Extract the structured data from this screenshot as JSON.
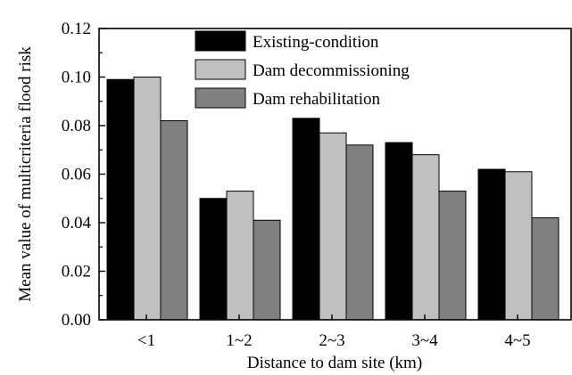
{
  "chart_data": {
    "type": "bar",
    "xlabel": "Distance to dam site (km)",
    "ylabel": "Mean value of multicriteria flood risk",
    "categories": [
      "<1",
      "1~2",
      "2~3",
      "3~4",
      "4~5"
    ],
    "ylim": [
      0,
      0.12
    ],
    "yticks": [
      "0.00",
      "0.02",
      "0.04",
      "0.06",
      "0.08",
      "0.10",
      "0.12"
    ],
    "series": [
      {
        "name": "Existing-condition",
        "color": "#000000",
        "values": [
          0.099,
          0.05,
          0.083,
          0.073,
          0.062
        ]
      },
      {
        "name": "Dam decommissioning",
        "color": "#c0c0c0",
        "values": [
          0.1,
          0.053,
          0.077,
          0.068,
          0.061
        ]
      },
      {
        "name": "Dam rehabilitation",
        "color": "#808080",
        "values": [
          0.082,
          0.041,
          0.072,
          0.053,
          0.042
        ]
      }
    ],
    "legend_position": "top-center",
    "grid": false
  }
}
